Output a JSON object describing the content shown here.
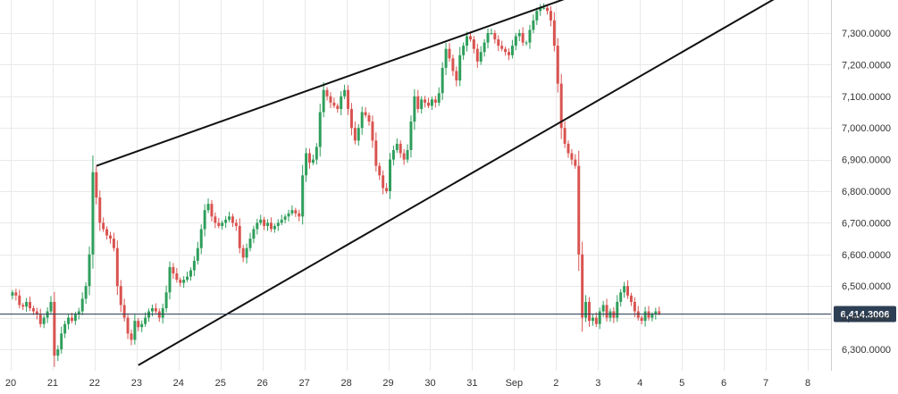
{
  "colors": {
    "up": "#2e9e5b",
    "down": "#d9534f",
    "grid": "#e9e9e9",
    "axis_text": "#333333",
    "current_price_line": "#2d3f55",
    "current_price_badge": "#2d3f55",
    "trendline": "#111111",
    "background": "#ffffff"
  },
  "chart_data": {
    "type": "candlestick",
    "title": "",
    "xlabel": "",
    "ylabel": "",
    "ylim": [
      6220,
      7400
    ],
    "grid": true,
    "x_tick_labels": [
      "20",
      "21",
      "22",
      "23",
      "24",
      "25",
      "26",
      "27",
      "28",
      "29",
      "30",
      "31",
      "Sep",
      "2",
      "3",
      "4",
      "5",
      "6",
      "7",
      "8"
    ],
    "y_tick_labels": [
      "6,300.0000",
      "6,400.0000",
      "6,500.0000",
      "6,600.0000",
      "6,700.0000",
      "6,800.0000",
      "6,900.0000",
      "7,000.0000",
      "7,100.0000",
      "7,200.0000",
      "7,300.0000"
    ],
    "y_tick_values": [
      6300,
      6400,
      6500,
      6600,
      6700,
      6800,
      6900,
      7000,
      7100,
      7200,
      7300
    ],
    "current_price": 6414.3006,
    "current_price_label": "6,414.3006",
    "bars_per_day": 12,
    "close": [
      6480,
      6470,
      6440,
      6435,
      6450,
      6430,
      6420,
      6410,
      6380,
      6400,
      6420,
      6450,
      6280,
      6300,
      6350,
      6380,
      6400,
      6390,
      6410,
      6420,
      6460,
      6500,
      6600,
      6860,
      6780,
      6700,
      6680,
      6660,
      6650,
      6620,
      6500,
      6440,
      6400,
      6350,
      6330,
      6390,
      6370,
      6380,
      6400,
      6420,
      6430,
      6420,
      6400,
      6430,
      6480,
      6560,
      6540,
      6520,
      6510,
      6520,
      6530,
      6550,
      6580,
      6620,
      6680,
      6740,
      6760,
      6720,
      6700,
      6690,
      6700,
      6710,
      6720,
      6700,
      6690,
      6620,
      6590,
      6620,
      6650,
      6680,
      6700,
      6710,
      6690,
      6700,
      6680,
      6690,
      6700,
      6710,
      6720,
      6730,
      6740,
      6730,
      6720,
      6850,
      6920,
      6890,
      6900,
      6940,
      7050,
      7120,
      7100,
      7080,
      7070,
      7060,
      7100,
      7120,
      7060,
      7000,
      6960,
      7000,
      7050,
      7040,
      7020,
      6960,
      6880,
      6850,
      6810,
      6800,
      6900,
      6930,
      6950,
      6920,
      6900,
      6930,
      7020,
      7100,
      7060,
      7090,
      7080,
      7070,
      7090,
      7080,
      7110,
      7190,
      7250,
      7220,
      7180,
      7150,
      7230,
      7260,
      7290,
      7280,
      7250,
      7210,
      7240,
      7270,
      7300,
      7300,
      7280,
      7260,
      7250,
      7240,
      7230,
      7260,
      7290,
      7300,
      7270,
      7270,
      7310,
      7340,
      7370,
      7380,
      7380,
      7370,
      7340,
      7260,
      7140,
      7000,
      6950,
      6920,
      6900,
      6880,
      6600,
      6400,
      6450,
      6390,
      6400,
      6380,
      6420,
      6440,
      6400,
      6420,
      6400,
      6450,
      6480,
      6500,
      6470,
      6450,
      6420,
      6400,
      6390,
      6420,
      6400,
      6410,
      6420,
      6414
    ]
  }
}
